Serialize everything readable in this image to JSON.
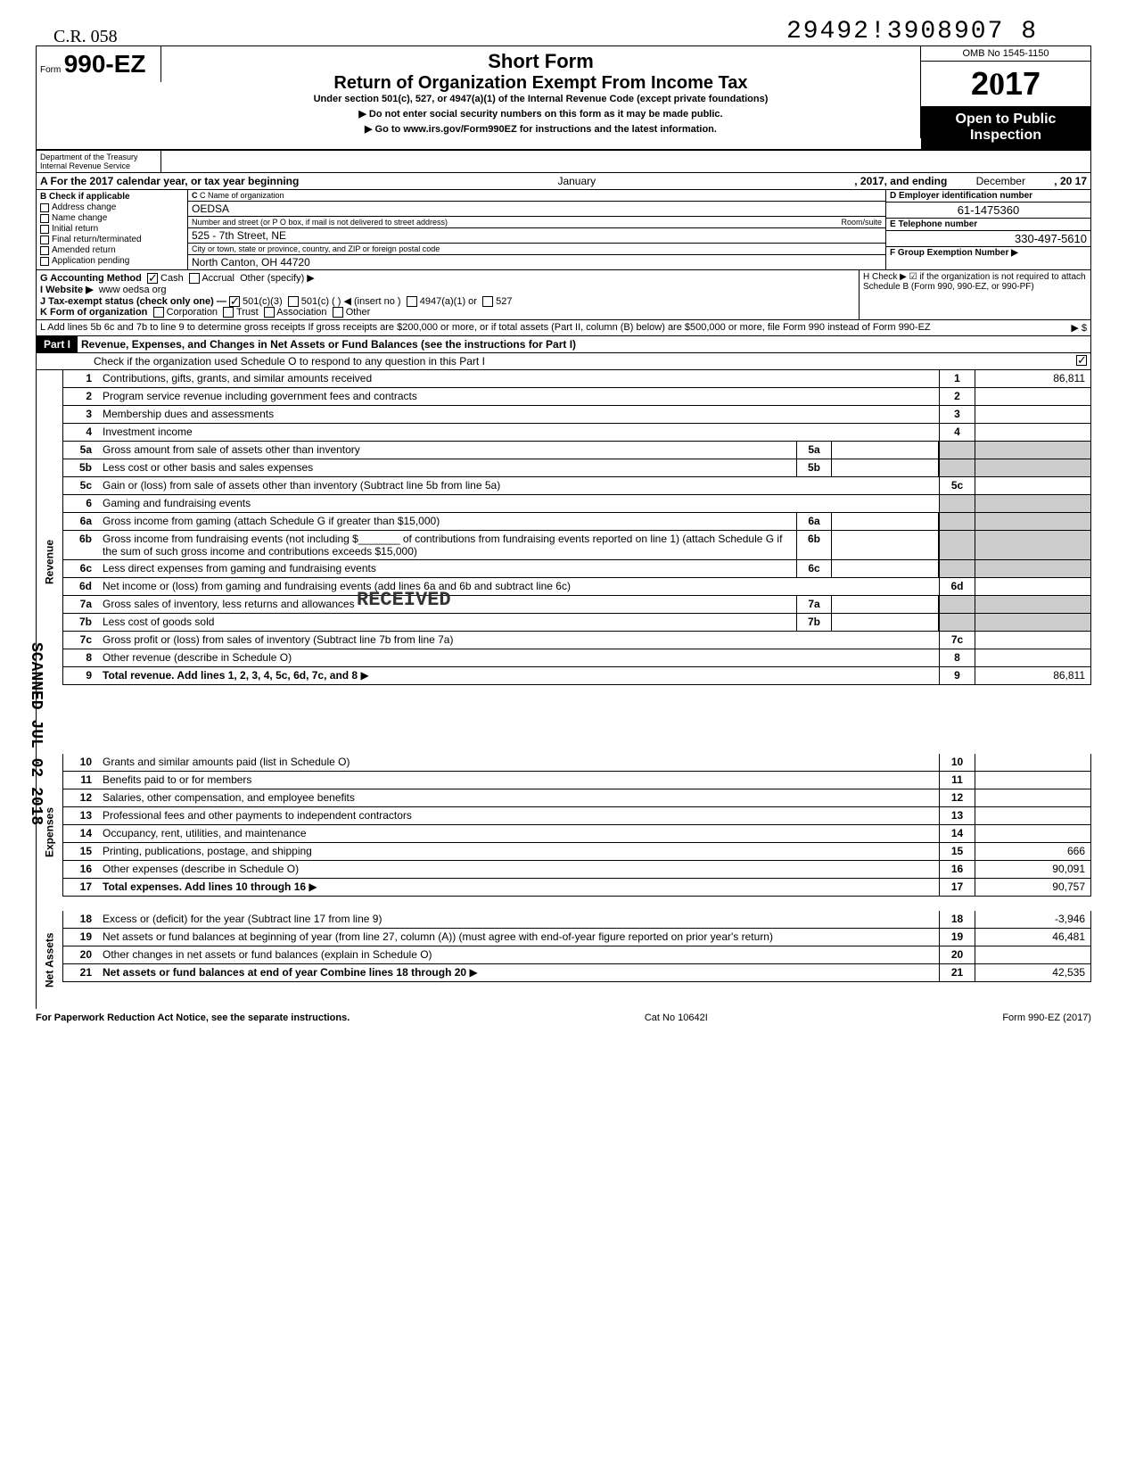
{
  "doc_number": "29492!3908907  8",
  "stamp_text": "C.R. 058",
  "omb": "OMB No 1545-1150",
  "year": "2017",
  "form_num": "990-EZ",
  "form_prefix": "Form",
  "title_short": "Short Form",
  "title_return": "Return of Organization Exempt From Income Tax",
  "title_under": "Under section 501(c), 527, or 4947(a)(1) of the Internal Revenue Code (except private foundations)",
  "title_warn": "▶ Do not enter social security numbers on this form as it may be made public.",
  "title_goto": "▶ Go to www.irs.gov/Form990EZ for instructions and the latest information.",
  "open_public": "Open to Public Inspection",
  "dept": "Department of the Treasury",
  "irs": "Internal Revenue Service",
  "lineA": "A For the 2017 calendar year, or tax year beginning",
  "lineA_begin": "January",
  "lineA_mid": ", 2017, and ending",
  "lineA_end": "December",
  "lineA_yr": ", 20   17",
  "B_label": "B Check if applicable",
  "B_items": [
    "Address change",
    "Name change",
    "Initial return",
    "Final return/terminated",
    "Amended return",
    "Application pending"
  ],
  "C_label": "C Name of organization",
  "org_name": "OEDSA",
  "addr_label": "Number and street (or P O box, if mail is not delivered to street address)",
  "addr": "525 - 7th Street, NE",
  "room_label": "Room/suite",
  "city_label": "City or town, state or province, country, and ZIP or foreign postal code",
  "city": "North Canton, OH 44720",
  "D_label": "D Employer identification number",
  "ein": "61-1475360",
  "E_label": "E Telephone number",
  "phone": "330-497-5610",
  "F_label": "F Group Exemption Number ▶",
  "G_label": "G Accounting Method",
  "G_cash": "Cash",
  "G_accrual": "Accrual",
  "G_other": "Other (specify) ▶",
  "H_label": "H Check ▶ ☑ if the organization is not required to attach Schedule B (Form 990, 990-EZ, or 990-PF)",
  "I_label": "I Website ▶",
  "website": "www oedsa org",
  "J_label": "J Tax-exempt status (check only one) —",
  "J_opts": [
    "501(c)(3)",
    "501(c) (        ) ◀ (insert no )",
    "4947(a)(1) or",
    "527"
  ],
  "K_label": "K Form of organization",
  "K_opts": [
    "Corporation",
    "Trust",
    "Association",
    "Other"
  ],
  "L_text": "L Add lines 5b 6c and 7b to line 9 to determine gross receipts If gross receipts are $200,000 or more, or if total assets (Part II, column (B) below) are $500,000 or more, file Form 990 instead of Form 990-EZ",
  "L_arrow": "▶  $",
  "part1_label": "Part I",
  "part1_title": "Revenue, Expenses, and Changes in Net Assets or Fund Balances (see the instructions for Part I)",
  "part1_check": "Check if the organization used Schedule O to respond to any question in this Part I",
  "received": "RECEIVED",
  "scanned": "SCANNED JUL 02 2018",
  "lines": {
    "1": {
      "desc": "Contributions, gifts, grants, and similar amounts received",
      "val": "86,811"
    },
    "2": {
      "desc": "Program service revenue including government fees and contracts",
      "val": ""
    },
    "3": {
      "desc": "Membership dues and assessments",
      "val": ""
    },
    "4": {
      "desc": "Investment income",
      "val": ""
    },
    "5a": {
      "desc": "Gross amount from sale of assets other than inventory",
      "mid": "5a"
    },
    "5b": {
      "desc": "Less cost or other basis and sales expenses",
      "mid": "5b"
    },
    "5c": {
      "desc": "Gain or (loss) from sale of assets other than inventory (Subtract line 5b from line 5a)",
      "val": ""
    },
    "6": {
      "desc": "Gaming and fundraising events"
    },
    "6a": {
      "desc": "Gross income from gaming (attach Schedule G if greater than $15,000)",
      "mid": "6a"
    },
    "6b": {
      "desc": "Gross income from fundraising events (not including $_______ of contributions from fundraising events reported on line 1) (attach Schedule G if the sum of such gross income and contributions exceeds $15,000)",
      "mid": "6b"
    },
    "6c": {
      "desc": "Less direct expenses from gaming and fundraising events",
      "mid": "6c"
    },
    "6d": {
      "desc": "Net income or (loss) from gaming and fundraising events (add lines 6a and 6b and subtract line 6c)",
      "val": ""
    },
    "7a": {
      "desc": "Gross sales of inventory, less returns and allowances",
      "mid": "7a"
    },
    "7b": {
      "desc": "Less cost of goods sold",
      "mid": "7b"
    },
    "7c": {
      "desc": "Gross profit or (loss) from sales of inventory (Subtract line 7b from line 7a)",
      "val": ""
    },
    "8": {
      "desc": "Other revenue (describe in Schedule O)",
      "val": ""
    },
    "9": {
      "desc": "Total revenue. Add lines 1, 2, 3, 4, 5c, 6d, 7c, and 8",
      "val": "86,811",
      "arrow": "▶"
    },
    "10": {
      "desc": "Grants and similar amounts paid (list in Schedule O)",
      "val": ""
    },
    "11": {
      "desc": "Benefits paid to or for members",
      "val": ""
    },
    "12": {
      "desc": "Salaries, other compensation, and employee benefits",
      "val": ""
    },
    "13": {
      "desc": "Professional fees and other payments to independent contractors",
      "val": ""
    },
    "14": {
      "desc": "Occupancy, rent, utilities, and maintenance",
      "val": ""
    },
    "15": {
      "desc": "Printing, publications, postage, and shipping",
      "val": "666"
    },
    "16": {
      "desc": "Other expenses (describe in Schedule O)",
      "val": "90,091"
    },
    "17": {
      "desc": "Total expenses. Add lines 10 through 16",
      "val": "90,757",
      "arrow": "▶"
    },
    "18": {
      "desc": "Excess or (deficit) for the year (Subtract line 17 from line 9)",
      "val": "-3,946"
    },
    "19": {
      "desc": "Net assets or fund balances at beginning of year (from line 27, column (A)) (must agree with end-of-year figure reported on prior year's return)",
      "val": "46,481"
    },
    "20": {
      "desc": "Other changes in net assets or fund balances (explain in Schedule O)",
      "val": ""
    },
    "21": {
      "desc": "Net assets or fund balances at end of year Combine lines 18 through 20",
      "val": "42,535",
      "arrow": "▶"
    }
  },
  "sections": {
    "revenue": "Revenue",
    "expenses": "Expenses",
    "netassets": "Net Assets"
  },
  "footer_left": "For Paperwork Reduction Act Notice, see the separate instructions.",
  "footer_mid": "Cat No 10642I",
  "footer_right": "Form 990-EZ (2017)"
}
